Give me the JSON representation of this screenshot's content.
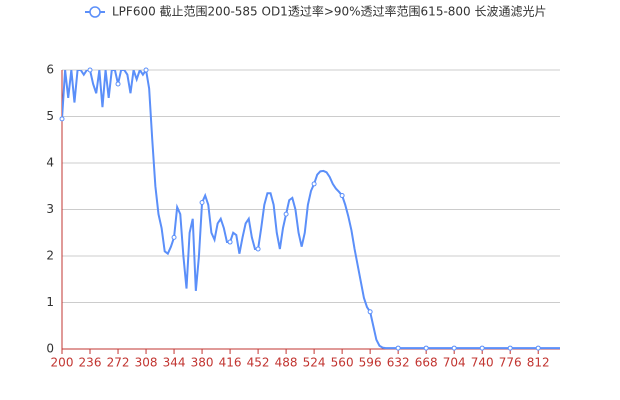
{
  "chart_data": {
    "type": "line",
    "x": [
      200,
      204,
      208,
      212,
      216,
      220,
      224,
      228,
      232,
      236,
      240,
      244,
      248,
      252,
      256,
      260,
      264,
      268,
      272,
      276,
      280,
      284,
      288,
      292,
      296,
      300,
      304,
      308,
      312,
      316,
      320,
      324,
      328,
      332,
      336,
      340,
      344,
      348,
      352,
      356,
      360,
      364,
      368,
      372,
      376,
      380,
      384,
      388,
      392,
      396,
      400,
      404,
      408,
      412,
      416,
      420,
      424,
      428,
      432,
      436,
      440,
      444,
      448,
      452,
      456,
      460,
      464,
      468,
      472,
      476,
      480,
      484,
      488,
      492,
      496,
      500,
      504,
      508,
      512,
      516,
      520,
      524,
      528,
      532,
      536,
      540,
      544,
      548,
      552,
      556,
      560,
      564,
      568,
      572,
      576,
      580,
      584,
      588,
      592,
      596,
      600,
      604,
      608,
      612,
      616,
      620,
      624,
      628,
      632,
      636,
      640,
      644,
      648,
      652,
      656,
      660,
      664,
      668,
      672,
      676,
      680,
      684,
      688,
      692,
      696,
      700,
      704,
      708,
      712,
      716,
      720,
      724,
      728,
      732,
      736,
      740,
      744,
      748,
      752,
      756,
      760,
      764,
      768,
      772,
      776,
      780,
      784,
      788,
      792,
      796,
      800,
      804,
      808,
      812,
      816,
      820,
      824,
      828,
      832,
      836,
      840
    ],
    "series": [
      {
        "name": "LPF600 截止范围200-585 OD1透过率>90%透过率范围615-800 长波通滤光片",
        "color": "#5b8ff9",
        "values": [
          4.95,
          6,
          5.4,
          6,
          5.3,
          6,
          6,
          5.9,
          6,
          6,
          5.7,
          5.5,
          6,
          5.2,
          6,
          5.4,
          6,
          6,
          5.7,
          6,
          6,
          5.9,
          5.5,
          6,
          5.8,
          6,
          5.9,
          6,
          5.6,
          4.5,
          3.5,
          2.9,
          2.6,
          2.1,
          2.05,
          2.2,
          2.4,
          3.05,
          2.9,
          2.0,
          1.3,
          2.5,
          2.8,
          1.25,
          2.0,
          3.15,
          3.3,
          3.1,
          2.5,
          2.35,
          2.7,
          2.8,
          2.6,
          2.3,
          2.3,
          2.5,
          2.45,
          2.05,
          2.4,
          2.7,
          2.8,
          2.4,
          2.15,
          2.15,
          2.6,
          3.1,
          3.35,
          3.35,
          3.1,
          2.5,
          2.15,
          2.6,
          2.9,
          3.2,
          3.25,
          3.0,
          2.5,
          2.2,
          2.5,
          3.1,
          3.4,
          3.55,
          3.75,
          3.82,
          3.83,
          3.8,
          3.7,
          3.55,
          3.45,
          3.38,
          3.3,
          3.1,
          2.85,
          2.55,
          2.15,
          1.8,
          1.45,
          1.1,
          0.9,
          0.8,
          0.5,
          0.2,
          0.07,
          0.03,
          0.02,
          0.02,
          0.02,
          0.02,
          0.02,
          0.02,
          0.02,
          0.02,
          0.02,
          0.02,
          0.02,
          0.02,
          0.02,
          0.02,
          0.02,
          0.02,
          0.02,
          0.02,
          0.02,
          0.02,
          0.02,
          0.02,
          0.02,
          0.02,
          0.02,
          0.02,
          0.02,
          0.02,
          0.02,
          0.02,
          0.02,
          0.02,
          0.02,
          0.02,
          0.02,
          0.02,
          0.02,
          0.02,
          0.02,
          0.02,
          0.02,
          0.02,
          0.02,
          0.02,
          0.02,
          0.02,
          0.02,
          0.02,
          0.02,
          0.02,
          0.02,
          0.02,
          0.02,
          0.02,
          0.02,
          0.02,
          0.02
        ]
      }
    ],
    "xlim": [
      200,
      840
    ],
    "xticks": [
      200,
      236,
      272,
      308,
      344,
      380,
      416,
      452,
      488,
      524,
      560,
      596,
      632,
      668,
      704,
      740,
      776,
      812
    ],
    "ylim": [
      0,
      6
    ],
    "yticks": [
      0,
      1,
      2,
      3,
      4,
      5,
      6
    ],
    "grid": true
  }
}
